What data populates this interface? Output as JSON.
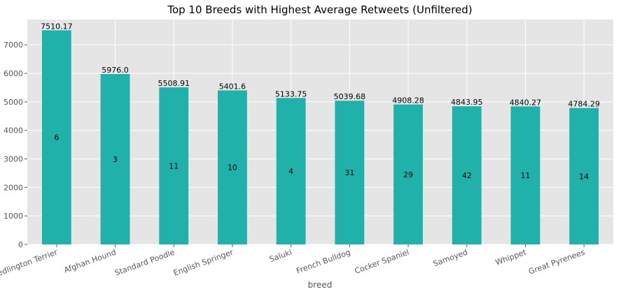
{
  "chart_data": {
    "type": "bar",
    "title": "Top 10 Breeds with Highest Average Retweets (Unfiltered)",
    "xlabel": "breed",
    "ylabel": "",
    "categories": [
      "Bedlington Terrier",
      "Afghan Hound",
      "Standard Poodle",
      "English Springer",
      "Saluki",
      "French Bulldog",
      "Cocker Spaniel",
      "Samoyed",
      "Whippet",
      "Great Pyrenees"
    ],
    "values": [
      7510.17,
      5976.0,
      5508.91,
      5401.6,
      5133.75,
      5039.68,
      4908.28,
      4843.95,
      4840.27,
      4784.29
    ],
    "value_labels": [
      "7510.17",
      "5976.0",
      "5508.91",
      "5401.6",
      "5133.75",
      "5039.68",
      "4908.28",
      "4843.95",
      "4840.27",
      "4784.29"
    ],
    "counts": [
      "6",
      "3",
      "11",
      "10",
      "4",
      "31",
      "29",
      "42",
      "11",
      "14"
    ],
    "yticks": [
      0,
      1000,
      2000,
      3000,
      4000,
      5000,
      6000,
      7000
    ],
    "ylim": [
      0,
      7886
    ],
    "grid": true,
    "bar_color": "#20b2aa",
    "background_color": "#e5e5e5",
    "grid_color": "#ffffff"
  }
}
